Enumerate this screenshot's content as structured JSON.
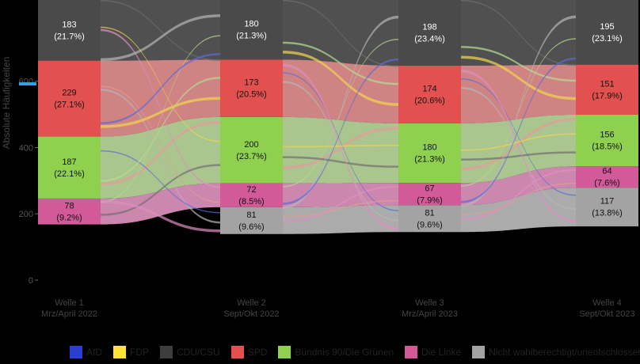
{
  "chart_data": {
    "type": "sankey",
    "title": "",
    "ylabel": "Absolute Häufigkeiten",
    "xlabel": "",
    "ylim": [
      0,
      845
    ],
    "yticks": [
      0,
      200,
      400,
      600
    ],
    "waves": [
      {
        "line1": "Welle 1",
        "line2": "Mrz/April 2022"
      },
      {
        "line1": "Welle 2",
        "line2": "Sept/Okt 2022"
      },
      {
        "line1": "Welle 3",
        "line2": "Mrz/April 2023"
      },
      {
        "line1": "Welle 4",
        "line2": "Sept/Okt 2023"
      }
    ],
    "categories": [
      "Nicht wahlberechtigt/unentschlossen",
      "Die Linke",
      "Bündnis 90/Die Grünen",
      "SPD",
      "CDU/CSU",
      "FDP",
      "AfD"
    ],
    "nodes": [
      [
        {
          "category": "CDU/CSU",
          "count": 183,
          "label": "183",
          "pct": "(21.7%)"
        },
        {
          "category": "SPD",
          "count": 229,
          "label": "229",
          "pct": "(27.1%)"
        },
        {
          "category": "Bündnis 90/Die Grünen",
          "count": 187,
          "label": "187",
          "pct": "(22.1%)"
        },
        {
          "category": "Die Linke",
          "count": 78,
          "label": "78",
          "pct": "(9.2%)"
        }
      ],
      [
        {
          "category": "CDU/CSU",
          "count": 180,
          "label": "180",
          "pct": "(21.3%)"
        },
        {
          "category": "SPD",
          "count": 173,
          "label": "173",
          "pct": "(20.5%)"
        },
        {
          "category": "Bündnis 90/Die Grünen",
          "count": 200,
          "label": "200",
          "pct": "(23.7%)"
        },
        {
          "category": "Die Linke",
          "count": 72,
          "label": "72",
          "pct": "(8.5%)"
        },
        {
          "category": "Nicht wahlberechtigt/unentschlossen",
          "count": 81,
          "label": "81",
          "pct": "(9.6%)"
        }
      ],
      [
        {
          "category": "CDU/CSU",
          "count": 198,
          "label": "198",
          "pct": "(23.4%)"
        },
        {
          "category": "SPD",
          "count": 174,
          "label": "174",
          "pct": "(20.6%)"
        },
        {
          "category": "Bündnis 90/Die Grünen",
          "count": 180,
          "label": "180",
          "pct": "(21.3%)"
        },
        {
          "category": "Die Linke",
          "count": 67,
          "label": "67",
          "pct": "(7.9%)"
        },
        {
          "category": "Nicht wahlberechtigt/unentschlossen",
          "count": 81,
          "label": "81",
          "pct": "(9.6%)"
        }
      ],
      [
        {
          "category": "CDU/CSU",
          "count": 195,
          "label": "195",
          "pct": "(23.1%)"
        },
        {
          "category": "SPD",
          "count": 151,
          "label": "151",
          "pct": "(17.9%)"
        },
        {
          "category": "Bündnis 90/Die Grünen",
          "count": 156,
          "label": "156",
          "pct": "(18.5%)"
        },
        {
          "category": "Die Linke",
          "count": 64,
          "label": "64",
          "pct": "(7.6%)"
        },
        {
          "category": "Nicht wahlberechtigt/unentschlossen",
          "count": 117,
          "label": "117",
          "pct": "(13.8%)"
        }
      ]
    ],
    "legend": [
      {
        "name": "AfD",
        "color": "#2a3fd0"
      },
      {
        "name": "FDP",
        "color": "#ffe234"
      },
      {
        "name": "CDU/CSU",
        "color": "#3d3d3d"
      },
      {
        "name": "SPD",
        "color": "#e35050"
      },
      {
        "name": "Bündnis 90/Die Grünen",
        "color": "#8fd14f"
      },
      {
        "name": "Die Linke",
        "color": "#d25a98"
      },
      {
        "name": "Nicht wahlberechtigt/unentschlossen",
        "color": "#a3a3a3"
      }
    ],
    "legend_position": "bottom",
    "colors": {
      "CDU/CSU": "#4a4a4a",
      "SPD": "#e35050",
      "Bündnis 90/Die Grünen": "#8fd14f",
      "Die Linke": "#d25a98",
      "Nicht wahlberechtigt/unentschlossen": "#a3a3a3",
      "AfD": "#2a3fd0",
      "FDP": "#ffe234"
    },
    "flow_colors": {
      "CDU/CSU": "#5e5e5e",
      "SPD": "#f39a9a",
      "Bündnis 90/Die Grünen": "#c8e8a6",
      "Die Linke": "#ee9fcb",
      "Nicht wahlberechtigt/unentschlossen": "#c9c9c9"
    }
  }
}
